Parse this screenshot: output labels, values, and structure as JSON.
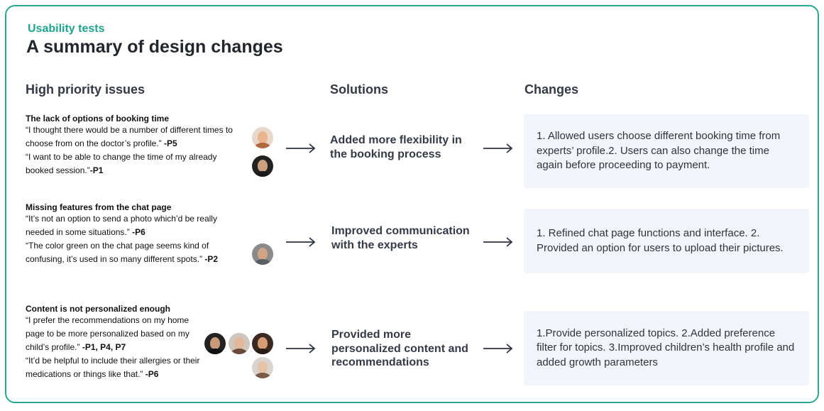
{
  "header": {
    "eyebrow": "Usability tests",
    "title": "A summary of design changes"
  },
  "columns": {
    "issues": "High priority issues",
    "solutions": "Solutions",
    "changes": "Changes"
  },
  "rows": [
    {
      "issue_title": "The lack of options of booking time",
      "quote1_text": "“I thought there would be a number of different times to choose from on the doctor’s profile.”",
      "quote1_who": " -P5",
      "quote2_text": "“I want to be able to change the time of my already booked session.”",
      "quote2_who": "-P1",
      "solution": "Added more flexibility in the booking process",
      "change": "1. Allowed users choose different booking time from experts’ profile.2. Users can also change the time again before proceeding to payment."
    },
    {
      "issue_title": "Missing features from the chat page",
      "quote1_text": "“It’s not an option to send a photo which’d be really needed in some situations.”",
      "quote1_who": " -P6",
      "quote2_text": "“The color green on the chat page seems kind of confusing, it’s used in so many different spots.”",
      "quote2_who": " -P2",
      "solution": "Improved communication with the experts",
      "change": "1. Refined chat page functions and interface. 2. Provided an option for users to upload their pictures."
    },
    {
      "issue_title": "Content is not personalized enough",
      "quote1_text": "“I prefer the recommendations on my home page to be more personalized based on my child’s profile.”",
      "quote1_who": " -P1, P4, P7",
      "quote2_text": "“It’d be helpful to include their allergies or their medications or things like that.”",
      "quote2_who": " -P6",
      "solution": "Provided more personalized content and recommendations",
      "change": "1.Provide personalized topics. 2.Added preference filter for topics. 3.Improved children’s health profile and added growth parameters"
    }
  ],
  "colors": {
    "accent": "#1fa38d",
    "border": "#2aa793",
    "card_bg": "#f2f5f9",
    "heading": "#353945"
  }
}
